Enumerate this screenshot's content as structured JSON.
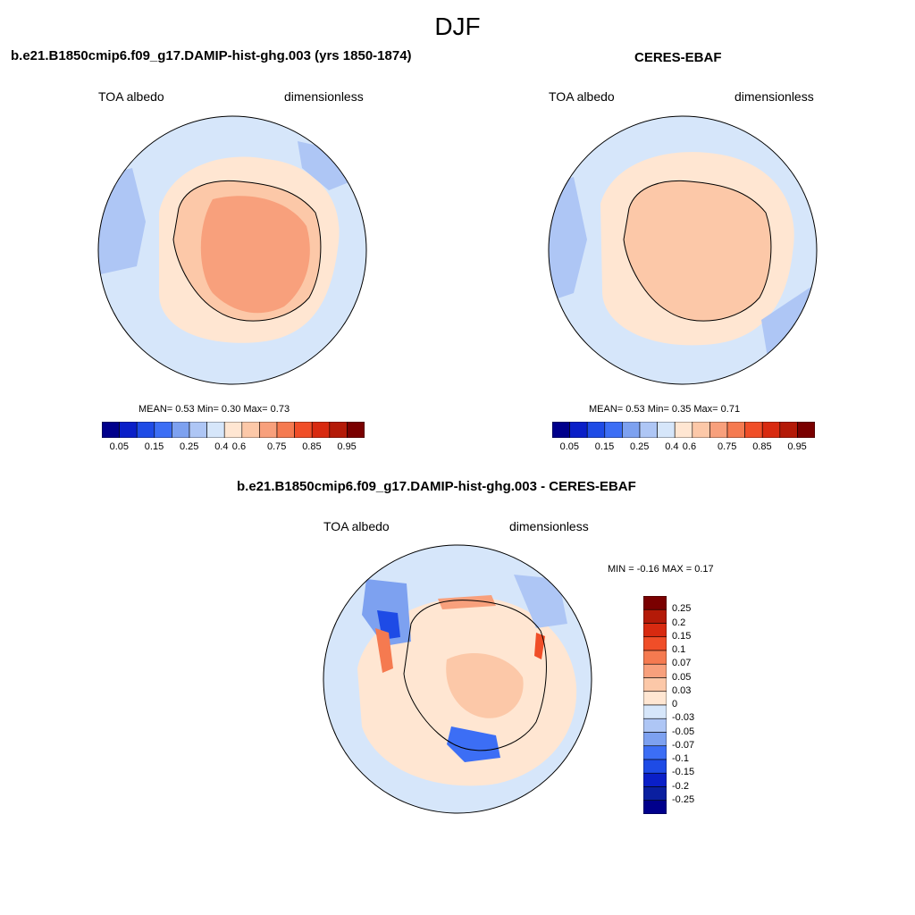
{
  "season": "DJF",
  "panels": [
    {
      "title": "b.e21.B1850cmip6.f09_g17.DAMIP-hist-ghg.003 (yrs 1850-1874)",
      "variable": "TOA albedo",
      "units": "dimensionless",
      "stats": "MEAN=   0.53  Min=   0.30  Max=   0.73"
    },
    {
      "title": "CERES-EBAF",
      "variable": "TOA albedo",
      "units": "dimensionless",
      "stats": "MEAN=   0.53  Min=   0.35  Max=   0.71"
    },
    {
      "title": "b.e21.B1850cmip6.f09_g17.DAMIP-hist-ghg.003 - CERES-EBAF",
      "variable": "TOA albedo",
      "units": "dimensionless",
      "stats": "MIN =  -0.16 MAX =   0.17"
    }
  ],
  "colorbar_abs": {
    "labels": [
      "0.05",
      "0.15",
      "0.25",
      "0.4",
      "0.6",
      "0.75",
      "0.85",
      "0.95"
    ],
    "colors": [
      "#00008c",
      "#0a1fc8",
      "#1e4be6",
      "#3c6ef5",
      "#7da1f0",
      "#aec6f5",
      "#d6e6fa",
      "#ffe6d2",
      "#fcc8a8",
      "#f8a07c",
      "#f57a50",
      "#f04e28",
      "#d82a10",
      "#b41a08",
      "#7a0000"
    ]
  },
  "colorbar_diff": {
    "labels": [
      "0.25",
      "0.2",
      "0.15",
      "0.1",
      "0.07",
      "0.05",
      "0.03",
      "0",
      "-0.03",
      "-0.05",
      "-0.07",
      "-0.1",
      "-0.15",
      "-0.2",
      "-0.25"
    ],
    "colors": [
      "#7a0000",
      "#b41a08",
      "#d82a10",
      "#f04e28",
      "#f57a50",
      "#f8a07c",
      "#fcc8a8",
      "#ffe6d2",
      "#d6e6fa",
      "#aec6f5",
      "#7da1f0",
      "#3c6ef5",
      "#1e4be6",
      "#0a1fc8",
      "#0a1fa0",
      "#00008c"
    ]
  },
  "map_colors": {
    "ocean": "#d6e6fa",
    "light_blue": "#aec6f5",
    "mid_blue": "#7da1f0",
    "blue": "#3c6ef5",
    "dark_blue": "#1e4be6",
    "pale_orange": "#ffe6d2",
    "orange": "#fcc8a8",
    "deep_orange": "#f8a07c",
    "red": "#f04e28"
  }
}
